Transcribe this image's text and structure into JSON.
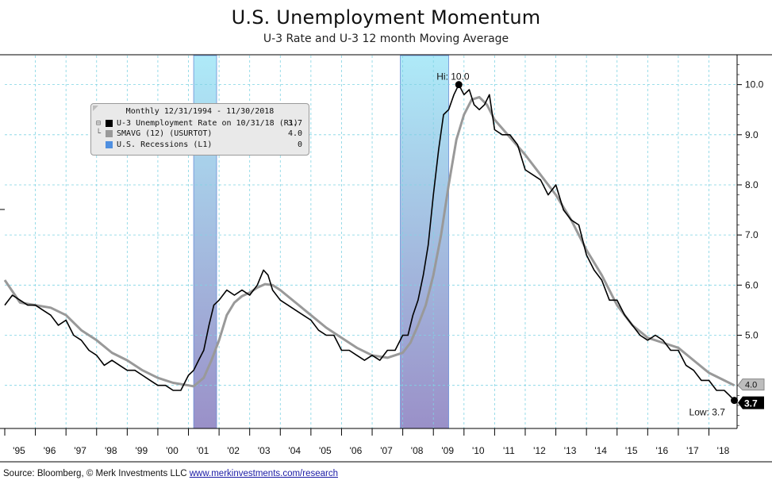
{
  "title": "U.S. Unemployment Momentum",
  "subtitle": "U-3 Rate and U-3 12 month Moving Average",
  "legend": {
    "header": "Monthly 12/31/1994 - 11/30/2018",
    "items": [
      {
        "tree": "⊟",
        "label": "U-3 Unemployment Rate on 10/31/18 (R1)",
        "value": "3.7",
        "color": "#000000"
      },
      {
        "tree": "└",
        "label": "SMAVG (12) (USURTOT)",
        "value": "4.0",
        "color": "#999999"
      },
      {
        "tree": "",
        "label": "U.S. Recessions (L1)",
        "value": "0",
        "color": "#4f8fe0"
      }
    ]
  },
  "annotations": {
    "hi_label": "Hi: 10.0",
    "low_label": "Low: 3.7",
    "last_sma_badge": "4.0",
    "last_rate_badge": "3.7"
  },
  "source": {
    "text": "Source: Bloomberg, © Merk Investments LLC",
    "link": "www.merkinvestments.com/research"
  },
  "colors": {
    "rate": "#000000",
    "sma": "#999999",
    "recession_top": "#aeeaf8",
    "recession_bottom": "#9a90c8",
    "grid": "#7fd3e3"
  },
  "chart_data": {
    "type": "line",
    "x_range": [
      1995.0,
      2018.92
    ],
    "ylim": [
      3.14,
      10.58
    ],
    "y_ticks": [
      4.0,
      5.0,
      6.0,
      7.0,
      8.0,
      9.0,
      10.0
    ],
    "y_tick_labels": [
      "",
      "5.0",
      "6.0",
      "7.0",
      "8.0",
      "9.0",
      "10.0"
    ],
    "x_tick_labels": [
      "'95",
      "'96",
      "'97",
      "'98",
      "'99",
      "'00",
      "'01",
      "'02",
      "'03",
      "'04",
      "'05",
      "'06",
      "'07",
      "'08",
      "'09",
      "'10",
      "'11",
      "'12",
      "'13",
      "'14",
      "'15",
      "'16",
      "'17",
      "'18"
    ],
    "grid": true,
    "legend_position": "top-left",
    "recessions": [
      {
        "start": 2001.17,
        "end": 2001.92
      },
      {
        "start": 2007.92,
        "end": 2009.5
      }
    ],
    "series": [
      {
        "name": "U-3 Unemployment Rate on 10/31/18 (R1)",
        "x": [
          1995.0,
          1995.25,
          1995.5,
          1995.75,
          1996.0,
          1996.25,
          1996.5,
          1996.75,
          1997.0,
          1997.25,
          1997.5,
          1997.75,
          1998.0,
          1998.25,
          1998.5,
          1998.75,
          1999.0,
          1999.25,
          1999.5,
          1999.75,
          2000.0,
          2000.25,
          2000.5,
          2000.75,
          2001.0,
          2001.17,
          2001.33,
          2001.5,
          2001.67,
          2001.83,
          2002.0,
          2002.25,
          2002.5,
          2002.75,
          2003.0,
          2003.25,
          2003.45,
          2003.6,
          2003.75,
          2004.0,
          2004.25,
          2004.5,
          2004.75,
          2005.0,
          2005.25,
          2005.5,
          2005.75,
          2006.0,
          2006.25,
          2006.5,
          2006.75,
          2007.0,
          2007.25,
          2007.5,
          2007.75,
          2008.0,
          2008.17,
          2008.33,
          2008.5,
          2008.67,
          2008.83,
          2009.0,
          2009.17,
          2009.33,
          2009.5,
          2009.67,
          2009.83,
          2010.0,
          2010.17,
          2010.33,
          2010.5,
          2010.67,
          2010.83,
          2011.0,
          2011.25,
          2011.5,
          2011.75,
          2012.0,
          2012.25,
          2012.5,
          2012.75,
          2013.0,
          2013.25,
          2013.5,
          2013.75,
          2014.0,
          2014.25,
          2014.5,
          2014.75,
          2015.0,
          2015.25,
          2015.5,
          2015.75,
          2016.0,
          2016.25,
          2016.5,
          2016.75,
          2017.0,
          2017.25,
          2017.5,
          2017.75,
          2018.0,
          2018.25,
          2018.5,
          2018.67,
          2018.83
        ],
        "y": [
          5.6,
          5.8,
          5.7,
          5.6,
          5.6,
          5.5,
          5.4,
          5.2,
          5.3,
          5.0,
          4.9,
          4.7,
          4.6,
          4.4,
          4.5,
          4.4,
          4.3,
          4.3,
          4.2,
          4.1,
          4.0,
          4.0,
          3.9,
          3.9,
          4.2,
          4.3,
          4.5,
          4.7,
          5.2,
          5.6,
          5.7,
          5.9,
          5.8,
          5.9,
          5.8,
          6.0,
          6.3,
          6.2,
          5.9,
          5.7,
          5.6,
          5.5,
          5.4,
          5.3,
          5.1,
          5.0,
          5.0,
          4.7,
          4.7,
          4.6,
          4.5,
          4.6,
          4.5,
          4.7,
          4.7,
          5.0,
          5.0,
          5.4,
          5.7,
          6.2,
          6.8,
          7.8,
          8.7,
          9.4,
          9.5,
          9.8,
          10.0,
          9.8,
          9.9,
          9.6,
          9.5,
          9.6,
          9.8,
          9.1,
          9.0,
          9.0,
          8.8,
          8.3,
          8.2,
          8.1,
          7.8,
          8.0,
          7.5,
          7.3,
          7.2,
          6.6,
          6.3,
          6.1,
          5.7,
          5.7,
          5.4,
          5.2,
          5.0,
          4.9,
          5.0,
          4.9,
          4.7,
          4.7,
          4.4,
          4.3,
          4.1,
          4.1,
          3.9,
          3.9,
          3.8,
          3.7
        ]
      },
      {
        "name": "SMAVG (12) (USURTOT)",
        "x": [
          1995.0,
          1995.5,
          1996.0,
          1996.5,
          1997.0,
          1997.5,
          1998.0,
          1998.5,
          1999.0,
          1999.5,
          2000.0,
          2000.5,
          2001.0,
          2001.17,
          2001.5,
          2001.75,
          2002.0,
          2002.25,
          2002.5,
          2002.75,
          2003.0,
          2003.25,
          2003.5,
          2003.75,
          2004.0,
          2004.5,
          2005.0,
          2005.5,
          2006.0,
          2006.5,
          2007.0,
          2007.5,
          2008.0,
          2008.25,
          2008.5,
          2008.75,
          2009.0,
          2009.25,
          2009.5,
          2009.75,
          2010.0,
          2010.25,
          2010.5,
          2010.75,
          2011.0,
          2011.5,
          2012.0,
          2012.5,
          2013.0,
          2013.5,
          2014.0,
          2014.5,
          2015.0,
          2015.5,
          2016.0,
          2016.5,
          2017.0,
          2017.5,
          2018.0,
          2018.5,
          2018.83
        ],
        "y": [
          6.1,
          5.65,
          5.6,
          5.55,
          5.4,
          5.1,
          4.9,
          4.65,
          4.5,
          4.3,
          4.15,
          4.05,
          4.0,
          3.98,
          4.15,
          4.5,
          4.9,
          5.4,
          5.65,
          5.78,
          5.85,
          5.95,
          6.02,
          6.0,
          5.9,
          5.65,
          5.4,
          5.15,
          4.95,
          4.75,
          4.6,
          4.55,
          4.65,
          4.85,
          5.2,
          5.6,
          6.2,
          7.0,
          8.0,
          8.9,
          9.4,
          9.7,
          9.75,
          9.6,
          9.3,
          8.95,
          8.6,
          8.2,
          7.8,
          7.3,
          6.7,
          6.2,
          5.6,
          5.2,
          4.95,
          4.85,
          4.75,
          4.5,
          4.25,
          4.1,
          4.0
        ]
      }
    ],
    "hi_point": {
      "x": 2009.83,
      "y": 10.0
    },
    "low_point": {
      "x": 2018.83,
      "y": 3.7
    }
  }
}
